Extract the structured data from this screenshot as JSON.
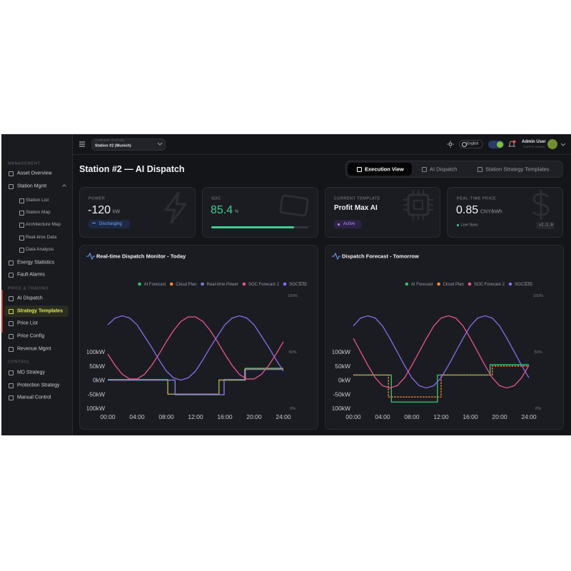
{
  "sidebar": {
    "sections": [
      {
        "title": "MANAGEMENT",
        "items": [
          "Asset Overview",
          "Station Mgmt",
          "Station List",
          "Station Map",
          "Architecture Map",
          "Real-time Data",
          "Data Analysis",
          "Energy Statistics",
          "Fault Alarms"
        ]
      },
      {
        "title": "PRICE & TRADING",
        "items": [
          "AI Dispatch",
          "Strategy Templates",
          "Price List",
          "Price Config",
          "Revenue Mgmt"
        ]
      },
      {
        "title": "CONTROL",
        "items": [
          "MD Strategy",
          "Protection Strategy",
          "Manual Control"
        ]
      }
    ]
  },
  "topbar": {
    "station_label": "CURRENT STATION",
    "station": "Station #2 (Munich)",
    "language": "English",
    "user": "Admin User",
    "role": "SUPER ADMIN"
  },
  "header": {
    "title": "Station #2 — AI Dispatch",
    "tabs": [
      "Execution View",
      "AI Dispatch",
      "Station Strategy Templates"
    ]
  },
  "cards": {
    "power": {
      "label": "POWER",
      "value": -120,
      "unit": "kW",
      "status": "Discharging"
    },
    "soc": {
      "label": "SOC",
      "value": 85.4,
      "unit": "%"
    },
    "template": {
      "label": "CURRENT TEMPLATE",
      "value": "Profit Max AI",
      "status": "Active"
    },
    "price": {
      "label": "REAL-TIME PRICE",
      "value": 0.85,
      "unit": "CNY/kWh",
      "status": "Live Sync",
      "version": "v2.1.0"
    }
  },
  "chart_data": [
    {
      "type": "line",
      "title": "Real-time Dispatch Monitor - Today",
      "xlim": [
        0,
        24
      ],
      "xticks": [
        {
          "value": 0,
          "label": "00:00"
        },
        {
          "value": 4,
          "label": "04:00"
        },
        {
          "value": 8,
          "label": "08:00"
        },
        {
          "value": 12,
          "label": "12:00"
        },
        {
          "value": 16,
          "label": "16:00"
        },
        {
          "value": 20,
          "label": "20:00"
        },
        {
          "value": 24,
          "label": "24:00"
        }
      ],
      "ylim": [
        -100,
        100
      ],
      "yticks": [
        {
          "value": -100,
          "label": "-100kW"
        },
        {
          "value": -50,
          "label": "-50kW"
        },
        {
          "value": 0,
          "label": "0kW"
        },
        {
          "value": 50,
          "label": "50kW"
        },
        {
          "value": 100,
          "label": "100kW"
        }
      ],
      "y2lim": [
        0,
        100
      ],
      "y2ticks": [
        {
          "value": 0,
          "label": "0%"
        },
        {
          "value": 50,
          "label": "50%"
        },
        {
          "value": 100,
          "label": "100%"
        }
      ],
      "series": [
        {
          "name": "AI Forecast",
          "color": "#2fbf71",
          "x": [
            0,
            8.2,
            8.2,
            15.2,
            15.2,
            18.8,
            18.8,
            24
          ],
          "values": [
            2,
            2,
            -50,
            -50,
            0,
            0,
            42,
            42
          ]
        },
        {
          "name": "Cloud Plan",
          "color": "#f0883e",
          "line_style": "dashed",
          "x": [
            0,
            8.2,
            8.2,
            15.2,
            15.2,
            18.8,
            18.8,
            24
          ],
          "values": [
            0,
            0,
            -50,
            -50,
            0,
            0,
            40,
            40
          ]
        },
        {
          "name": "Real-time Power",
          "color": "#7b7fd6",
          "x": [
            0,
            9.2,
            9.2,
            15.9,
            15.9,
            18.7,
            18.7,
            24
          ],
          "values": [
            0,
            0,
            -52,
            -52,
            2,
            2,
            38,
            38
          ]
        },
        {
          "name": "SOC Forecast 2",
          "color": "#e8578a",
          "axis": "y2",
          "x": [
            0,
            1,
            2,
            3,
            4,
            5,
            6,
            7,
            8,
            9,
            10,
            11,
            12,
            13,
            14,
            15,
            16,
            17,
            18,
            19,
            20,
            21,
            22,
            23,
            24
          ],
          "values": [
            48,
            38,
            30,
            26,
            26,
            30,
            38,
            48,
            59,
            69,
            77,
            81,
            81,
            77,
            69,
            59,
            48,
            38,
            30,
            26,
            26,
            30,
            38,
            48,
            59
          ]
        },
        {
          "name": "SOC实际",
          "color": "#8b6cf0",
          "axis": "y2",
          "x": [
            0,
            1,
            2,
            3,
            4,
            5,
            6,
            7,
            8,
            9,
            10,
            11,
            12,
            13,
            14,
            15,
            16,
            17,
            18,
            19,
            20,
            21,
            22,
            23,
            24
          ],
          "values": [
            74,
            80,
            82,
            80,
            74,
            64,
            54,
            43,
            33,
            27,
            25,
            27,
            33,
            43,
            54,
            64,
            74,
            80,
            82,
            80,
            74,
            64,
            54,
            43,
            33
          ]
        }
      ]
    },
    {
      "type": "line",
      "title": "Dispatch Forecast - Tomorrow",
      "xlim": [
        0,
        24
      ],
      "xticks": [
        {
          "value": 0,
          "label": "00:00"
        },
        {
          "value": 4,
          "label": "04:00"
        },
        {
          "value": 8,
          "label": "08:00"
        },
        {
          "value": 12,
          "label": "12:00"
        },
        {
          "value": 16,
          "label": "16:00"
        },
        {
          "value": 20,
          "label": "20:00"
        },
        {
          "value": 24,
          "label": "24:00"
        }
      ],
      "ylim": [
        -100,
        100
      ],
      "yticks": [
        {
          "value": -100,
          "label": "-100kW"
        },
        {
          "value": -50,
          "label": "-50kW"
        },
        {
          "value": 0,
          "label": "0kW"
        },
        {
          "value": 50,
          "label": "50kW"
        },
        {
          "value": 100,
          "label": "100kW"
        }
      ],
      "y2lim": [
        0,
        100
      ],
      "y2ticks": [
        {
          "value": 0,
          "label": "0%"
        },
        {
          "value": 50,
          "label": "50%"
        },
        {
          "value": 100,
          "label": "100%"
        }
      ],
      "series": [
        {
          "name": "AI Forecast",
          "color": "#2fbf71",
          "x": [
            0,
            5.2,
            5.2,
            11.5,
            11.5,
            18.7,
            18.7,
            24
          ],
          "values": [
            18,
            18,
            -78,
            -78,
            18,
            18,
            55,
            55
          ]
        },
        {
          "name": "Cloud Plan",
          "color": "#f0883e",
          "line_style": "dashed",
          "x": [
            0,
            4.8,
            4.8,
            12,
            12,
            19,
            19,
            24
          ],
          "values": [
            18,
            18,
            -60,
            -60,
            18,
            18,
            50,
            50
          ]
        },
        {
          "name": "SOC Forecast 2",
          "color": "#e8578a",
          "axis": "y2",
          "x": [
            0,
            1,
            2,
            3,
            4,
            5,
            6,
            7,
            8,
            9,
            10,
            11,
            12,
            13,
            14,
            15,
            16,
            17,
            18,
            19,
            20,
            21,
            22,
            23,
            24
          ],
          "values": [
            62,
            50,
            38,
            27,
            20,
            18,
            20,
            27,
            38,
            50,
            62,
            73,
            80,
            82,
            80,
            73,
            62,
            50,
            38,
            27,
            20,
            18,
            20,
            27,
            38
          ]
        },
        {
          "name": "SOC实际",
          "color": "#8b6cf0",
          "axis": "y2",
          "x": [
            0,
            1,
            2,
            3,
            4,
            5,
            6,
            7,
            8,
            9,
            10,
            11,
            12,
            13,
            14,
            15,
            16,
            17,
            18,
            19,
            20,
            21,
            22,
            23,
            24
          ],
          "values": [
            73,
            80,
            82,
            80,
            73,
            62,
            50,
            38,
            27,
            20,
            18,
            20,
            27,
            38,
            50,
            62,
            73,
            80,
            82,
            80,
            73,
            62,
            50,
            38,
            27
          ]
        }
      ]
    }
  ]
}
